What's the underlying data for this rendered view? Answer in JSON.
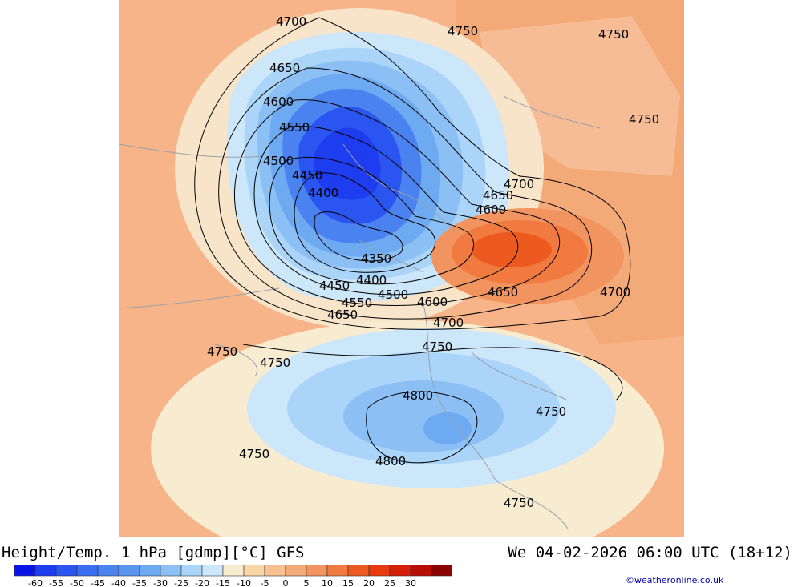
{
  "title": "Height/Temp. 1 hPa [gdmp][°C] GFS",
  "valid_time": "We 04-02-2026 06:00 UTC (18+12)",
  "credit": "©weatheronline.co.uk",
  "legend": {
    "ticks": [
      "-60",
      "-55",
      "-50",
      "-45",
      "-40",
      "-35",
      "-30",
      "-25",
      "-20",
      "-15",
      "-10",
      "-5",
      "0",
      "5",
      "10",
      "15",
      "20",
      "25",
      "30"
    ],
    "colors": [
      "#0a14e6",
      "#1e3cf0",
      "#2a55f0",
      "#3a6ef0",
      "#4a82f0",
      "#5a96f0",
      "#6eaaf2",
      "#8cc0f5",
      "#aad4f8",
      "#cce6fa",
      "#f8ecd0",
      "#f8d6a8",
      "#f6c090",
      "#f4aa78",
      "#f29460",
      "#f07a40",
      "#ec5a20",
      "#e83a10",
      "#d81e08",
      "#b80e06",
      "#8a0400"
    ]
  },
  "contour_labels": [
    "4700",
    "4750",
    "4750",
    "4750",
    "4650",
    "4600",
    "4550",
    "4500",
    "4450",
    "4400",
    "4350",
    "4700",
    "4650",
    "4600",
    "4400",
    "4450",
    "4500",
    "4550",
    "4600",
    "4650",
    "4650",
    "4700",
    "4700",
    "4750",
    "4750",
    "4750",
    "4800",
    "4750",
    "4750",
    "4800",
    "4750"
  ]
}
